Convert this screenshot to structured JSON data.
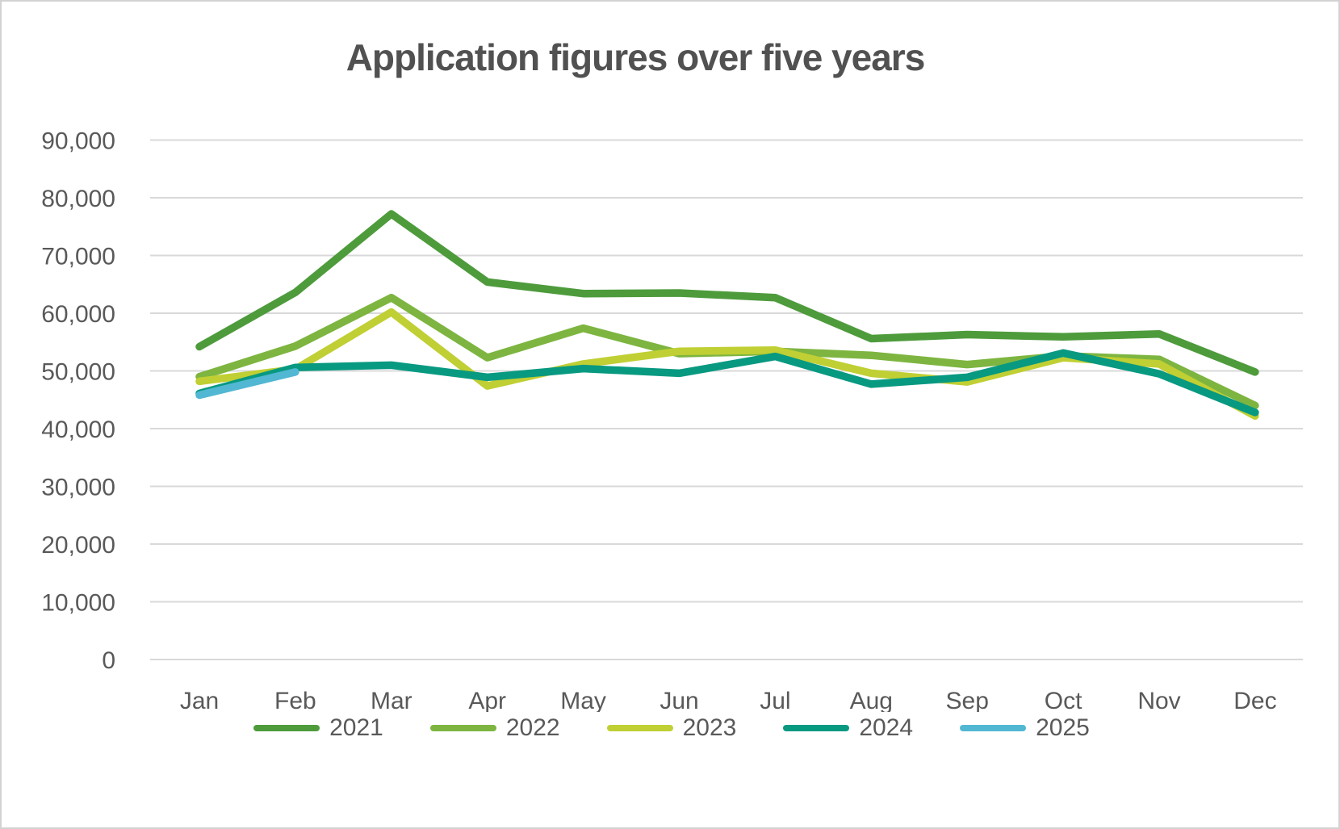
{
  "chart": {
    "title": "Application figures over five years",
    "text_color": "#595959",
    "title_color": "#515151",
    "gridline_color": "#d9d9d9",
    "background_color": "#ffffff"
  },
  "chart_data": {
    "type": "line",
    "title": "Application figures over five years",
    "categories": [
      "Jan",
      "Feb",
      "Mar",
      "Apr",
      "May",
      "Jun",
      "Jul",
      "Aug",
      "Sep",
      "Oct",
      "Nov",
      "Dec"
    ],
    "series": [
      {
        "name": "2021",
        "color": "#4e9b3c",
        "values": [
          54200,
          63600,
          77200,
          65400,
          63400,
          63500,
          62700,
          55600,
          56300,
          55900,
          56400,
          49800
        ]
      },
      {
        "name": "2022",
        "color": "#7db540",
        "values": [
          49000,
          54300,
          62700,
          52300,
          57400,
          53000,
          53400,
          52700,
          51100,
          52600,
          52000,
          44000
        ]
      },
      {
        "name": "2023",
        "color": "#c0cf33",
        "values": [
          48200,
          50300,
          60200,
          47400,
          51200,
          53400,
          53600,
          49600,
          48100,
          52300,
          51200,
          42200
        ]
      },
      {
        "name": "2024",
        "color": "#089981",
        "values": [
          46100,
          50600,
          51000,
          48900,
          50400,
          49600,
          52500,
          47700,
          48900,
          53100,
          49500,
          42800
        ]
      },
      {
        "name": "2025",
        "color": "#52b7d3",
        "values": [
          45800,
          49800,
          null,
          null,
          null,
          null,
          null,
          null,
          null,
          null,
          null,
          null
        ]
      }
    ],
    "ylim": [
      0,
      90000
    ],
    "ytick_step": 10000,
    "ytick_labels": [
      "0",
      "10,000",
      "20,000",
      "30,000",
      "40,000",
      "50,000",
      "60,000",
      "70,000",
      "80,000",
      "90,000"
    ],
    "xlabel": "",
    "ylabel": "",
    "grid": "horizontal",
    "legend_position": "bottom",
    "line_width": 9.5
  }
}
